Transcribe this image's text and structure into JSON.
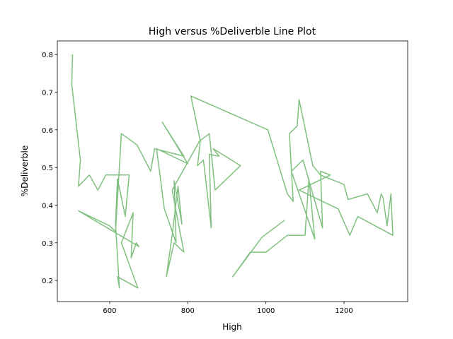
{
  "chart_data": {
    "type": "line",
    "title": "High versus %Deliverble Line Plot",
    "x_label": "High",
    "y_label": "%Deliverble",
    "xlim": [
      466,
      1363
    ],
    "ylim": [
      0.144,
      0.836
    ],
    "xticks": [
      600,
      800,
      1000,
      1200
    ],
    "yticks": [
      0.2,
      0.3,
      0.4,
      0.5,
      0.6,
      0.7,
      0.8
    ],
    "series": [
      {
        "name": "%Deliverble",
        "color": "#80c080",
        "x": [
          505,
          503,
          525,
          520,
          548,
          570,
          590,
          650,
          640,
          620,
          615,
          625,
          620,
          672,
          630,
          660,
          655,
          668,
          675,
          520,
          600,
          615,
          630,
          670,
          705,
          715,
          790,
          735,
          800,
          720,
          740,
          770,
          765,
          785,
          775,
          760,
          745,
          765,
          790,
          760,
          830,
          855,
          870,
          935,
          865,
          880,
          855,
          860,
          840,
          825,
          832,
          808,
          1005,
          1055,
          1070,
          1060,
          1080,
          1085,
          1120,
          1140,
          1200,
          1210,
          1260,
          1285,
          1295,
          1300,
          1310,
          1320,
          1325,
          1235,
          1215,
          1185,
          1085,
          1165,
          1140,
          1145,
          1095,
          1065,
          1125,
          1110,
          1100,
          1055,
          1000,
          960,
          915,
          990,
          1048
        ],
        "values": [
          0.8,
          0.72,
          0.52,
          0.45,
          0.48,
          0.44,
          0.48,
          0.48,
          0.37,
          0.47,
          0.35,
          0.18,
          0.21,
          0.18,
          0.3,
          0.38,
          0.26,
          0.3,
          0.29,
          0.385,
          0.345,
          0.33,
          0.59,
          0.56,
          0.49,
          0.55,
          0.53,
          0.62,
          0.51,
          0.55,
          0.39,
          0.3,
          0.465,
          0.35,
          0.45,
          0.32,
          0.21,
          0.3,
          0.275,
          0.44,
          0.57,
          0.59,
          0.44,
          0.505,
          0.55,
          0.53,
          0.535,
          0.34,
          0.52,
          0.505,
          0.57,
          0.69,
          0.6,
          0.43,
          0.41,
          0.59,
          0.61,
          0.68,
          0.505,
          0.48,
          0.455,
          0.415,
          0.43,
          0.38,
          0.43,
          0.42,
          0.345,
          0.43,
          0.32,
          0.37,
          0.32,
          0.39,
          0.44,
          0.48,
          0.49,
          0.34,
          0.52,
          0.49,
          0.31,
          0.47,
          0.32,
          0.32,
          0.275,
          0.275,
          0.21,
          0.315,
          0.36
        ]
      }
    ]
  }
}
